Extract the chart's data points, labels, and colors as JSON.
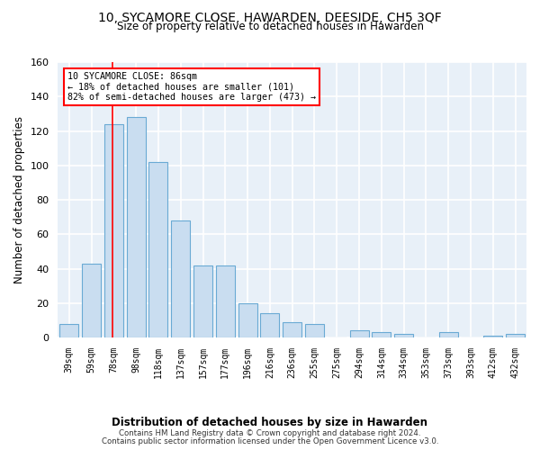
{
  "title": "10, SYCAMORE CLOSE, HAWARDEN, DEESIDE, CH5 3QF",
  "subtitle": "Size of property relative to detached houses in Hawarden",
  "xlabel_bottom": "Distribution of detached houses by size in Hawarden",
  "ylabel": "Number of detached properties",
  "bar_color": "#c9ddf0",
  "bar_edge_color": "#6aaad4",
  "background_color": "#e8f0f8",
  "grid_color": "#ffffff",
  "categories": [
    "39sqm",
    "59sqm",
    "78sqm",
    "98sqm",
    "118sqm",
    "137sqm",
    "157sqm",
    "177sqm",
    "196sqm",
    "216sqm",
    "236sqm",
    "255sqm",
    "275sqm",
    "294sqm",
    "314sqm",
    "334sqm",
    "353sqm",
    "373sqm",
    "393sqm",
    "412sqm",
    "432sqm"
  ],
  "values": [
    8,
    43,
    124,
    128,
    102,
    68,
    42,
    42,
    20,
    14,
    9,
    8,
    0,
    4,
    3,
    2,
    0,
    3,
    0,
    1,
    2
  ],
  "ylim": [
    0,
    160
  ],
  "yticks": [
    0,
    20,
    40,
    60,
    80,
    100,
    120,
    140,
    160
  ],
  "property_label": "10 SYCAMORE CLOSE: 86sqm",
  "pct_smaller": "18% of detached houses are smaller (101)",
  "pct_larger": "82% of semi-detached houses are larger (473)",
  "vline_x_index": 1.93,
  "footer_line1": "Contains HM Land Registry data © Crown copyright and database right 2024.",
  "footer_line2": "Contains public sector information licensed under the Open Government Licence v3.0."
}
